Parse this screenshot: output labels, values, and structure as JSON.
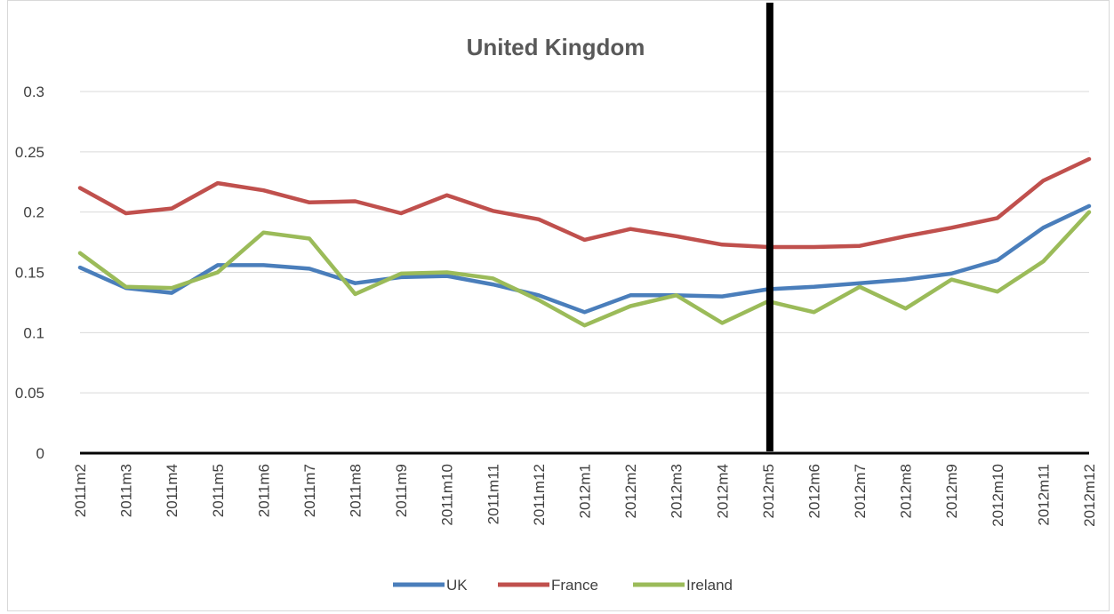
{
  "chart_data": {
    "type": "line",
    "title": "United Kingdom",
    "xlabel": "",
    "ylabel": "",
    "ylim": [
      0,
      0.3
    ],
    "yticks": [
      "0",
      "0.05",
      "0.1",
      "0.15",
      "0.2",
      "0.25",
      "0.3"
    ],
    "ytick_values": [
      0,
      0.05,
      0.1,
      0.15,
      0.2,
      0.25,
      0.3
    ],
    "grid": true,
    "legend": "bottom",
    "marker_line_at": "2012m5",
    "categories": [
      "2011m2",
      "2011m3",
      "2011m4",
      "2011m5",
      "2011m6",
      "2011m7",
      "2011m8",
      "2011m9",
      "2011m10",
      "2011m11",
      "2011m12",
      "2012m1",
      "2012m2",
      "2012m3",
      "2012m4",
      "2012m5",
      "2012m6",
      "2012m7",
      "2012m8",
      "2012m9",
      "2012m10",
      "2012m11",
      "2012m12"
    ],
    "series": [
      {
        "name": "UK",
        "color": "#4a7ebb",
        "values": [
          0.154,
          0.137,
          0.133,
          0.156,
          0.156,
          0.153,
          0.141,
          0.146,
          0.147,
          0.14,
          0.131,
          0.117,
          0.131,
          0.131,
          0.13,
          0.136,
          0.138,
          0.141,
          0.144,
          0.149,
          0.16,
          0.187,
          0.205
        ]
      },
      {
        "name": "France",
        "color": "#c0504d",
        "values": [
          0.22,
          0.199,
          0.203,
          0.224,
          0.218,
          0.208,
          0.209,
          0.199,
          0.214,
          0.201,
          0.194,
          0.177,
          0.186,
          0.18,
          0.173,
          0.171,
          0.171,
          0.172,
          0.18,
          0.187,
          0.195,
          0.226,
          0.244
        ]
      },
      {
        "name": "Ireland",
        "color": "#9bbb59",
        "values": [
          0.166,
          0.138,
          0.137,
          0.15,
          0.183,
          0.178,
          0.132,
          0.149,
          0.15,
          0.145,
          0.127,
          0.106,
          0.122,
          0.131,
          0.108,
          0.126,
          0.117,
          0.138,
          0.12,
          0.144,
          0.134,
          0.159,
          0.2
        ]
      }
    ]
  }
}
